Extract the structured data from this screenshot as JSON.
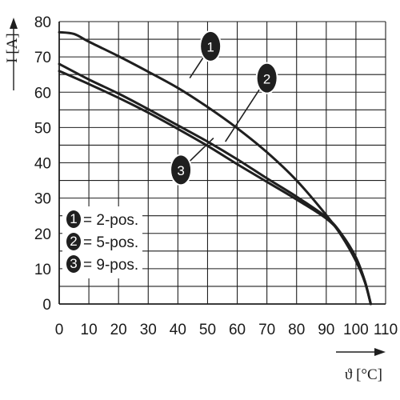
{
  "chart_data": {
    "type": "line",
    "xlabel": "ϑ [°C]",
    "ylabel": "I [A]",
    "xlim": [
      0,
      105
    ],
    "ylim": [
      0,
      80
    ],
    "x_ticks": [
      "0",
      "10",
      "20",
      "30",
      "40",
      "50",
      "60",
      "70",
      "80",
      "90",
      "100",
      "110"
    ],
    "y_ticks": [
      "0",
      "10",
      "20",
      "30",
      "40",
      "50",
      "60",
      "70",
      "80"
    ],
    "grid": true,
    "series": [
      {
        "marker": "1",
        "x": [
          0,
          5,
          10,
          20,
          30,
          40,
          50,
          60,
          70,
          80,
          90,
          95,
          100,
          103,
          105
        ],
        "y": [
          77,
          76.5,
          74.3,
          70.2,
          65.8,
          61.2,
          55.8,
          49.8,
          43.0,
          35.0,
          25.2,
          19.5,
          12.2,
          6.2,
          0
        ]
      },
      {
        "marker": "2",
        "x": [
          0,
          10,
          20,
          30,
          40,
          50,
          60,
          70,
          80,
          90,
          95,
          100,
          103,
          105
        ],
        "y": [
          68,
          63.6,
          59.6,
          55.2,
          50.6,
          46.0,
          41.0,
          35.6,
          30.4,
          24.6,
          20.0,
          13.2,
          6.5,
          0
        ]
      },
      {
        "marker": "3",
        "x": [
          0,
          10,
          20,
          30,
          40,
          50,
          60,
          70,
          80,
          90,
          95,
          100,
          103,
          105
        ],
        "y": [
          66,
          62.3,
          58.4,
          54.2,
          49.6,
          44.8,
          39.6,
          34.6,
          29.6,
          24.2,
          19.8,
          13.0,
          6.5,
          0
        ]
      }
    ],
    "legend": {
      "placement": "bottom-left",
      "entries": [
        {
          "marker": "1",
          "label": "= 2-pos."
        },
        {
          "marker": "2",
          "label": "= 5-pos."
        },
        {
          "marker": "3",
          "label": "= 9-pos."
        }
      ]
    },
    "annotations": [
      {
        "marker": "1",
        "x": 44,
        "y": 64,
        "label_x": 51,
        "label_y": 73
      },
      {
        "marker": "2",
        "x": 56,
        "y": 46,
        "label_x": 70,
        "label_y": 64
      },
      {
        "marker": "3",
        "x": 52,
        "y": 47,
        "label_x": 41,
        "label_y": 38
      }
    ],
    "colors": {
      "line": "#1f1f1f",
      "grid": "#1f1f1f",
      "text": "#1a1a1a",
      "marker_fill": "#1f1f1f",
      "marker_text": "#ffffff",
      "background": "#ffffff"
    }
  }
}
